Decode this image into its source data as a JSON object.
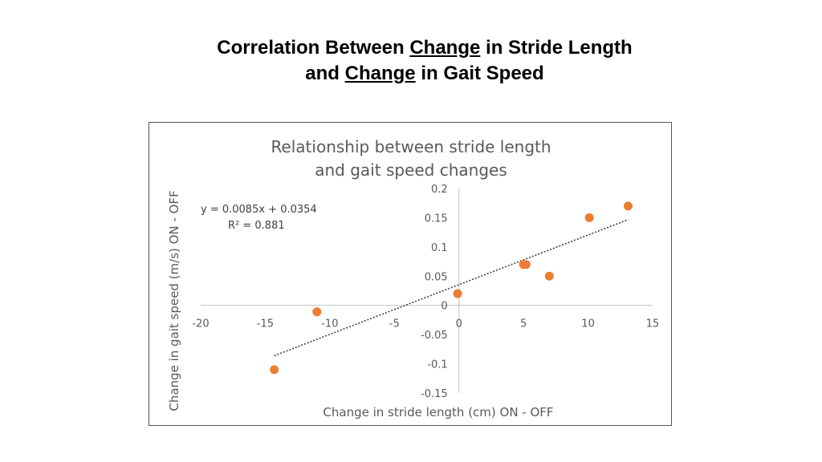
{
  "slide": {
    "title_parts": [
      {
        "text": "Correlation Between ",
        "underline": false
      },
      {
        "text": "Change",
        "underline": true
      },
      {
        "text": " in Stride Length",
        "underline": false
      },
      {
        "text": "and ",
        "underline": false,
        "break_before": true
      },
      {
        "text": "Change",
        "underline": true
      },
      {
        "text": " in Gait Speed",
        "underline": false
      }
    ]
  },
  "chart_data": {
    "type": "scatter",
    "title_line1": "Relationship between stride length",
    "title_line2": "and gait speed changes",
    "xlabel": "Change in stride length (cm) ON - OFF",
    "ylabel": "Change in gait speed (m/s) ON - OFF",
    "xlim": [
      -20,
      15
    ],
    "ylim": [
      -0.15,
      0.2
    ],
    "x_ticks": [
      -20,
      -15,
      -10,
      -5,
      0,
      5,
      10,
      15
    ],
    "y_ticks": [
      0.2,
      0.15,
      0.1,
      0.05,
      0,
      -0.05,
      -0.1,
      -0.15
    ],
    "y_tick_labels": [
      "0.2",
      "0.15",
      "0.1",
      "0.05",
      "0",
      "-0.05",
      "-0.1",
      "-0.15"
    ],
    "grid": false,
    "legend": "none",
    "marker_color": "#ED7D31",
    "trendline_color": "#404040",
    "series": [
      {
        "x": [
          -14.3,
          -11.0,
          -0.1,
          5.0,
          5.2,
          7.0,
          10.1,
          13.1
        ],
        "y": [
          -0.11,
          -0.011,
          0.02,
          0.07,
          0.07,
          0.05,
          0.15,
          0.17
        ]
      }
    ],
    "trendline": {
      "type": "linear",
      "slope": 0.0085,
      "intercept": 0.0354,
      "x_range": [
        -14.3,
        13.1
      ],
      "equation": "y = 0.0085x + 0.0354",
      "r_squared": "R² = 0.881"
    }
  }
}
